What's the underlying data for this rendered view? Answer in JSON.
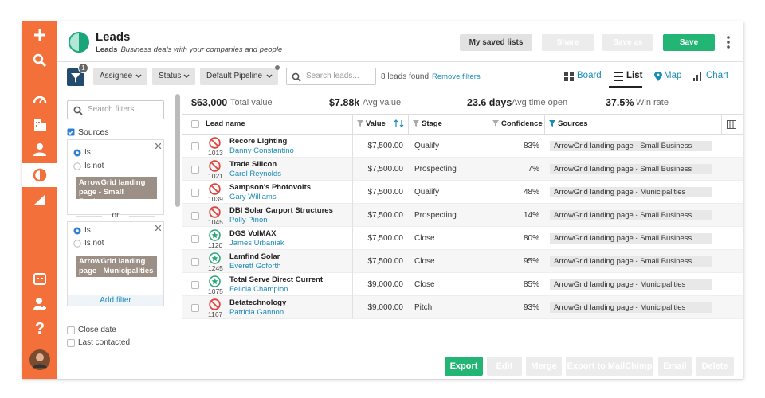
{
  "nav": {
    "help": "?"
  },
  "header": {
    "title": "Leads",
    "subtitle_bold": "Leads",
    "subtitle": "Business deals with your companies and people",
    "buttons": [
      "My saved lists",
      "Share",
      "Save as",
      "Save"
    ]
  },
  "toolbar": {
    "badge": "1",
    "dropdowns": [
      "Assignee",
      "Status",
      "Default Pipeline"
    ],
    "search_placeholder": "Search leads...",
    "count": "8 leads found",
    "remove": "Remove filters",
    "views": [
      "Board",
      "List",
      "Map",
      "Chart"
    ]
  },
  "sidebar": {
    "search_placeholder": "Search filters...",
    "section": "Sources",
    "filters": [
      {
        "options": [
          "Is",
          "Is not"
        ],
        "tag": "ArrowGrid landing page - Small Business"
      },
      {
        "options": [
          "Is",
          "Is not"
        ],
        "tag": "ArrowGrid landing page - Municipalities"
      }
    ],
    "separator": "or",
    "add": "Add filter",
    "extra": [
      "Close date",
      "Last contacted"
    ]
  },
  "stats": [
    {
      "value": "$63,000",
      "label": "Total value"
    },
    {
      "value": "$7.88k",
      "label": "Avg value"
    },
    {
      "value": "23.6 days",
      "label": "Avg time open"
    },
    {
      "value": "37.5%",
      "label": "Win rate"
    }
  ],
  "table": {
    "columns": [
      "Lead name",
      "Value",
      "Stage",
      "Confidence",
      "Sources"
    ],
    "rows": [
      {
        "id": "1013",
        "name": "Recore Lighting",
        "contact": "Danny Constantino",
        "value": "$7,500.00",
        "stage": "Qualify",
        "confidence": "83%",
        "source": "ArrowGrid landing page - Small Business",
        "won": false
      },
      {
        "id": "1021",
        "name": "Trade Silicon",
        "contact": "Carol Reynolds",
        "value": "$7,500.00",
        "stage": "Prospecting",
        "confidence": "7%",
        "source": "ArrowGrid landing page - Small Business",
        "won": false
      },
      {
        "id": "1039",
        "name": "Sampson's Photovolts",
        "contact": "Gary Williams",
        "value": "$7,500.00",
        "stage": "Qualify",
        "confidence": "48%",
        "source": "ArrowGrid landing page - Municipalities",
        "won": false
      },
      {
        "id": "1045",
        "name": "DBI Solar Carport Structures",
        "contact": "Polly Pinon",
        "value": "$7,500.00",
        "stage": "Prospecting",
        "confidence": "14%",
        "source": "ArrowGrid landing page - Small Business",
        "won": false
      },
      {
        "id": "1120",
        "name": "DGS VolMAX",
        "contact": "James Urbaniak",
        "value": "$7,500.00",
        "stage": "Close",
        "confidence": "80%",
        "source": "ArrowGrid landing page - Small Business",
        "won": true
      },
      {
        "id": "1245",
        "name": "Lamfind Solar",
        "contact": "Everett Goforth",
        "value": "$7,500.00",
        "stage": "Close",
        "confidence": "95%",
        "source": "ArrowGrid landing page - Small Business",
        "won": true
      },
      {
        "id": "1075",
        "name": "Total Serve Direct Current",
        "contact": "Felicia Champion",
        "value": "$9,000.00",
        "stage": "Close",
        "confidence": "85%",
        "source": "ArrowGrid landing page - Municipalities",
        "won": true
      },
      {
        "id": "1167",
        "name": "Betatechnology",
        "contact": "Patricia Gannon",
        "value": "$9,000.00",
        "stage": "Pitch",
        "confidence": "93%",
        "source": "ArrowGrid landing page - Municipalities",
        "won": false
      }
    ]
  },
  "footer": {
    "buttons": [
      "Export",
      "Edit",
      "Merge",
      "Export to MailChimp",
      "Email",
      "Delete"
    ]
  }
}
